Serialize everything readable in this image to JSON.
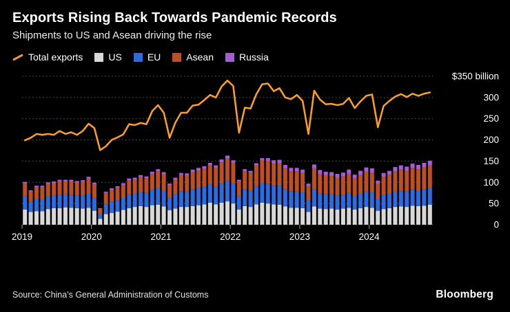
{
  "chart_data": {
    "type": "combo-bar-line",
    "title": "Exports Rising Back Towards Pandemic Records",
    "subtitle": "Shipments to US and Asean driving the rise",
    "source": "Source: China's General Administration of Customs",
    "brand": "Bloomberg",
    "unit": "$ billion",
    "ylim": [
      0,
      350
    ],
    "ytick_step": 50,
    "ytick_top_label": "$350 billion",
    "grid": "horizontal-dotted",
    "legend_position": "top-left",
    "stacked": true,
    "xticks": [
      "2019",
      "2020",
      "2021",
      "2022",
      "2023",
      "2024"
    ],
    "x": [
      "2019-01",
      "2019-02",
      "2019-03",
      "2019-04",
      "2019-05",
      "2019-06",
      "2019-07",
      "2019-08",
      "2019-09",
      "2019-10",
      "2019-11",
      "2019-12",
      "2020-01",
      "2020-02",
      "2020-03",
      "2020-04",
      "2020-05",
      "2020-06",
      "2020-07",
      "2020-08",
      "2020-09",
      "2020-10",
      "2020-11",
      "2020-12",
      "2021-01",
      "2021-02",
      "2021-03",
      "2021-04",
      "2021-05",
      "2021-06",
      "2021-07",
      "2021-08",
      "2021-09",
      "2021-10",
      "2021-11",
      "2021-12",
      "2022-01",
      "2022-02",
      "2022-03",
      "2022-04",
      "2022-05",
      "2022-06",
      "2022-07",
      "2022-08",
      "2022-09",
      "2022-10",
      "2022-11",
      "2022-12",
      "2023-01",
      "2023-02",
      "2023-03",
      "2023-04",
      "2023-05",
      "2023-06",
      "2023-07",
      "2023-08",
      "2023-09",
      "2023-10",
      "2023-11",
      "2023-12",
      "2024-01",
      "2024-02",
      "2024-03",
      "2024-04",
      "2024-05",
      "2024-06",
      "2024-07",
      "2024-08",
      "2024-09",
      "2024-10",
      "2024-11"
    ],
    "line_series": {
      "name": "Total exports",
      "color": "#f49d37",
      "values": [
        199,
        205,
        214,
        212,
        214,
        212,
        221,
        214,
        218,
        212,
        221,
        238,
        228,
        176,
        185,
        200,
        206,
        213,
        237,
        235,
        240,
        237,
        268,
        282,
        264,
        205,
        241,
        264,
        264,
        281,
        283,
        294,
        306,
        300,
        326,
        340,
        327,
        217,
        276,
        274,
        308,
        331,
        333,
        315,
        322,
        300,
        296,
        306,
        292,
        214,
        316,
        295,
        284,
        285,
        282,
        285,
        299,
        275,
        291,
        304,
        307,
        230,
        280,
        292,
        302,
        308,
        301,
        309,
        304,
        309,
        312
      ]
    },
    "bar_series": [
      {
        "name": "US",
        "color": "#d8d8d8",
        "values": [
          36,
          30,
          32,
          32,
          37,
          39,
          39,
          41,
          40,
          39,
          38,
          40,
          33,
          14,
          25,
          28,
          31,
          35,
          39,
          42,
          44,
          42,
          46,
          47,
          43,
          34,
          38,
          42,
          42,
          44,
          46,
          48,
          52,
          48,
          52,
          55,
          50,
          36,
          44,
          42,
          48,
          52,
          50,
          48,
          47,
          43,
          40,
          40,
          39,
          30,
          43,
          38,
          37,
          38,
          36,
          38,
          40,
          36,
          39,
          42,
          40,
          33,
          37,
          39,
          42,
          43,
          42,
          45,
          44,
          45,
          47
        ]
      },
      {
        "name": "EU",
        "color": "#2e6bdf",
        "values": [
          31,
          24,
          28,
          28,
          30,
          30,
          32,
          31,
          31,
          30,
          31,
          33,
          30,
          11,
          24,
          26,
          27,
          29,
          32,
          31,
          33,
          33,
          36,
          39,
          38,
          29,
          34,
          37,
          36,
          39,
          40,
          41,
          43,
          42,
          46,
          49,
          46,
          31,
          39,
          38,
          43,
          46,
          46,
          44,
          45,
          41,
          39,
          38,
          37,
          27,
          40,
          36,
          35,
          34,
          33,
          33,
          35,
          32,
          34,
          36,
          36,
          27,
          33,
          34,
          36,
          37,
          36,
          38,
          37,
          38,
          39
        ]
      },
      {
        "name": "Asean",
        "color": "#bd4f26",
        "values": [
          30,
          24,
          28,
          28,
          29,
          29,
          31,
          30,
          31,
          30,
          32,
          35,
          32,
          12,
          26,
          28,
          29,
          30,
          33,
          33,
          35,
          34,
          38,
          40,
          38,
          30,
          34,
          38,
          38,
          41,
          42,
          43,
          45,
          44,
          49,
          52,
          50,
          35,
          43,
          43,
          49,
          53,
          54,
          52,
          53,
          49,
          47,
          48,
          46,
          34,
          50,
          46,
          44,
          43,
          42,
          43,
          45,
          41,
          44,
          47,
          47,
          36,
          43,
          45,
          48,
          50,
          49,
          51,
          50,
          52,
          54
        ]
      },
      {
        "name": "Russia",
        "color": "#a55cd6",
        "values": [
          4,
          3,
          4,
          4,
          4,
          4,
          4,
          4,
          4,
          4,
          4,
          5,
          4,
          2,
          3,
          4,
          4,
          4,
          5,
          5,
          5,
          5,
          5,
          5,
          5,
          4,
          5,
          5,
          5,
          6,
          6,
          6,
          6,
          6,
          7,
          7,
          6,
          4,
          5,
          4,
          5,
          6,
          7,
          8,
          8,
          8,
          8,
          8,
          8,
          6,
          9,
          9,
          9,
          9,
          9,
          9,
          10,
          9,
          10,
          10,
          10,
          8,
          9,
          9,
          10,
          10,
          10,
          10,
          10,
          11,
          11
        ]
      }
    ]
  },
  "legend": [
    {
      "label": "Total exports",
      "swatch": "line",
      "color": "#f49d37"
    },
    {
      "label": "US",
      "swatch": "box",
      "color": "#d8d8d8"
    },
    {
      "label": "EU",
      "swatch": "box",
      "color": "#2e6bdf"
    },
    {
      "label": "Asean",
      "swatch": "box",
      "color": "#bd4f26"
    },
    {
      "label": "Russia",
      "swatch": "box",
      "color": "#a55cd6"
    }
  ]
}
